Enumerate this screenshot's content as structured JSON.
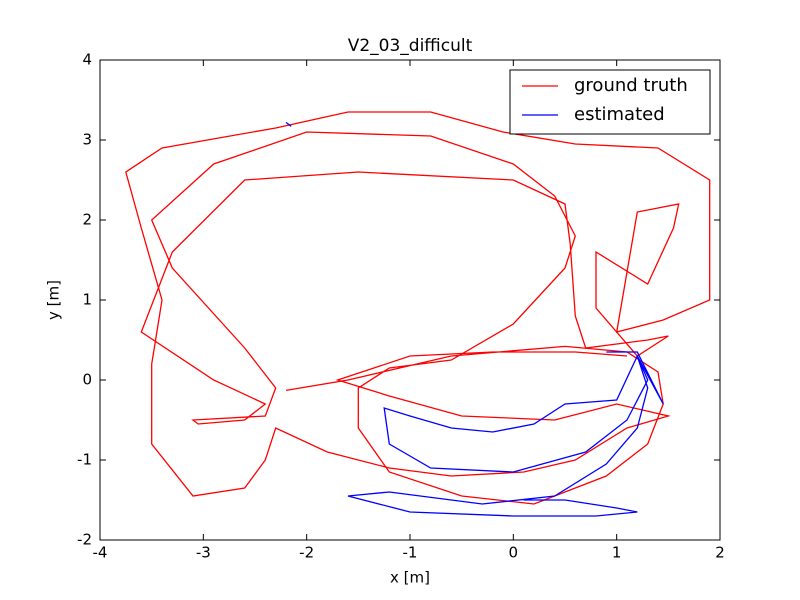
{
  "chart_data": {
    "type": "line",
    "title": "V2_03_difficult",
    "x_label": "x [m]",
    "y_label": "y [m]",
    "xlim": [
      -4,
      2
    ],
    "xticks": [
      -4,
      -3,
      -2,
      -1,
      0,
      1,
      2
    ],
    "ylim": [
      -2,
      4
    ],
    "yticks": [
      -2,
      -1,
      0,
      1,
      2,
      3,
      4
    ],
    "legend": "upper right",
    "series": [
      {
        "name": "ground truth",
        "color": "#ff0000",
        "x": [
          -2.2,
          -1.6,
          -0.6,
          0.5,
          1.1,
          1.4,
          1.45,
          1.3,
          0.9,
          0.2,
          -0.5,
          -1.2,
          -1.5,
          -1.5,
          -1.2,
          -0.6,
          0.0,
          0.5,
          0.6,
          0.4,
          0.0,
          -0.8,
          -2.0,
          -2.9,
          -3.5,
          -3.3,
          -2.6,
          -2.3,
          -2.4,
          -3.1,
          -3.05,
          -2.6,
          -2.4,
          -2.9,
          -3.6,
          -3.3,
          -2.6,
          -1.5,
          0.0,
          0.5,
          0.55,
          0.6,
          0.7,
          1.3,
          1.5,
          1.2,
          0.8,
          0.8,
          1.3,
          1.55,
          1.6,
          1.2,
          1.0,
          1.45,
          1.9,
          1.9,
          1.4,
          0.6,
          -0.1,
          -0.8,
          -1.6,
          -2.3,
          -3.4,
          -3.75,
          -3.6,
          -3.4,
          -3.5,
          -3.5,
          -3.1,
          -2.6,
          -2.4,
          -2.3,
          -1.8,
          -1.2,
          -0.6,
          0.1,
          0.6,
          1.1,
          1.5,
          1.0,
          0.4,
          -0.5,
          -1.2,
          -1.7,
          -1.0,
          -0.2,
          0.6,
          1.1
        ],
        "values": [
          -0.13,
          0.0,
          0.3,
          0.42,
          0.35,
          0.1,
          -0.3,
          -0.8,
          -1.2,
          -1.55,
          -1.45,
          -1.15,
          -0.6,
          -0.1,
          0.15,
          0.25,
          0.7,
          1.4,
          1.8,
          2.3,
          2.7,
          3.05,
          3.1,
          2.7,
          2.0,
          1.4,
          0.4,
          -0.1,
          -0.45,
          -0.5,
          -0.55,
          -0.5,
          -0.3,
          0.0,
          0.6,
          1.6,
          2.5,
          2.6,
          2.5,
          2.2,
          1.7,
          0.8,
          0.4,
          0.5,
          0.55,
          0.3,
          0.9,
          1.6,
          1.2,
          1.9,
          2.2,
          2.1,
          0.6,
          0.75,
          1.0,
          2.5,
          2.9,
          2.95,
          3.1,
          3.35,
          3.35,
          3.15,
          2.9,
          2.6,
          1.9,
          1.0,
          0.2,
          -0.8,
          -1.45,
          -1.35,
          -1.0,
          -0.6,
          -0.9,
          -1.1,
          -1.2,
          -1.15,
          -1.0,
          -0.6,
          -0.45,
          -0.3,
          -0.5,
          -0.45,
          -0.2,
          0.0,
          0.3,
          0.35,
          0.35,
          0.3
        ]
      },
      {
        "name": "estimated",
        "color": "#0000ff",
        "x": [
          -2.2,
          -2.15,
          null,
          0.1,
          0.5,
          1.0,
          1.2,
          0.8,
          0.0,
          -1.0,
          -1.6,
          -1.2,
          -0.3,
          0.4,
          0.9,
          1.2,
          1.3,
          1.2,
          1.3,
          1.1,
          0.7,
          0.0,
          -0.8,
          -1.2,
          -1.25,
          -1.0,
          -0.6,
          -0.2,
          0.2,
          0.5,
          1.0,
          1.2,
          1.45,
          1.2,
          0.9
        ],
        "values": [
          3.22,
          3.17,
          null,
          -1.5,
          -1.5,
          -1.6,
          -1.65,
          -1.7,
          -1.7,
          -1.65,
          -1.45,
          -1.4,
          -1.55,
          -1.45,
          -1.05,
          -0.6,
          -0.1,
          0.3,
          0.0,
          -0.5,
          -0.9,
          -1.15,
          -1.1,
          -0.8,
          -0.35,
          -0.45,
          -0.6,
          -0.65,
          -0.55,
          -0.3,
          -0.25,
          0.3,
          -0.3,
          0.35,
          0.35
        ]
      }
    ]
  }
}
